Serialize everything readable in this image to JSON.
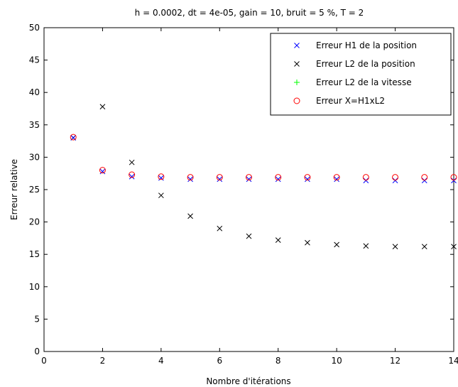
{
  "chart_data": {
    "type": "scatter",
    "title": "h = 0.0002, dt = 4e-05, gain = 10, bruit = 5 %, T = 2",
    "xlabel": "Nombre d'itérations",
    "ylabel": "Erreur relative",
    "xlim": [
      0,
      14
    ],
    "ylim": [
      0,
      50
    ],
    "xticks": [
      0,
      2,
      4,
      6,
      8,
      10,
      12,
      14
    ],
    "yticks": [
      0,
      5,
      10,
      15,
      20,
      25,
      30,
      35,
      40,
      45,
      50
    ],
    "grid": false,
    "legend_position": "top-right",
    "x": [
      1,
      2,
      3,
      4,
      5,
      6,
      7,
      8,
      9,
      10,
      11,
      12,
      13,
      14
    ],
    "series": [
      {
        "name": "Erreur H1 de la position",
        "marker": "x",
        "color": "#0000ff",
        "values": [
          33.0,
          27.8,
          27.0,
          26.8,
          26.6,
          26.6,
          26.6,
          26.6,
          26.6,
          26.6,
          26.4,
          26.4,
          26.4,
          26.4
        ]
      },
      {
        "name": "Erreur L2 de la position",
        "marker": "x",
        "color": "#000000",
        "values": [
          33.0,
          37.8,
          29.2,
          24.1,
          20.9,
          19.0,
          17.8,
          17.2,
          16.8,
          16.5,
          16.3,
          16.2,
          16.2,
          16.2
        ]
      },
      {
        "name": "Erreur L2 de la vitesse",
        "marker": "+",
        "color": "#00ff00",
        "values": []
      },
      {
        "name": "Erreur X=H1xL2",
        "marker": "o",
        "color": "#ff0000",
        "values": [
          33.1,
          28.0,
          27.3,
          27.0,
          26.9,
          26.9,
          26.9,
          26.9,
          26.9,
          26.9,
          26.9,
          26.9,
          26.9,
          26.9
        ]
      }
    ]
  }
}
